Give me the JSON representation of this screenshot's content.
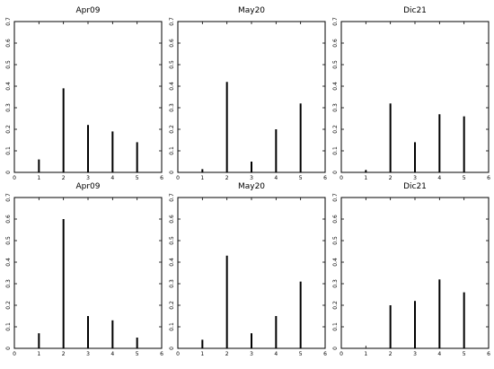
{
  "chart_data": [
    {
      "type": "bar",
      "style": "stem",
      "title": "Apr09",
      "x": [
        1,
        2,
        3,
        4,
        5
      ],
      "values": [
        0.06,
        0.39,
        0.22,
        0.19,
        0.14
      ],
      "xlim": [
        0,
        6
      ],
      "ylim": [
        0,
        0.7
      ],
      "xticks": [
        "0",
        "1",
        "2",
        "3",
        "4",
        "5",
        "6"
      ],
      "yticks": [
        "0",
        "0.1",
        "0.2",
        "0.3",
        "0.4",
        "0.5",
        "0.6",
        "0.7"
      ],
      "grid": false
    },
    {
      "type": "bar",
      "style": "stem",
      "title": "May20",
      "x": [
        1,
        2,
        3,
        4,
        5
      ],
      "values": [
        0.015,
        0.42,
        0.05,
        0.2,
        0.32
      ],
      "xlim": [
        0,
        6
      ],
      "ylim": [
        0,
        0.7
      ],
      "xticks": [
        "0",
        "1",
        "2",
        "3",
        "4",
        "5",
        "6"
      ],
      "yticks": [
        "0",
        "0.1",
        "0.2",
        "0.3",
        "0.4",
        "0.5",
        "0.6",
        "0.7"
      ],
      "grid": false
    },
    {
      "type": "bar",
      "style": "stem",
      "title": "Dic21",
      "x": [
        1,
        2,
        3,
        4,
        5
      ],
      "values": [
        0.01,
        0.32,
        0.14,
        0.27,
        0.26
      ],
      "xlim": [
        0,
        6
      ],
      "ylim": [
        0,
        0.7
      ],
      "xticks": [
        "0",
        "1",
        "2",
        "3",
        "4",
        "5",
        "6"
      ],
      "yticks": [
        "0",
        "0.1",
        "0.2",
        "0.3",
        "0.4",
        "0.5",
        "0.6",
        "0.7"
      ],
      "grid": false
    },
    {
      "type": "bar",
      "style": "stem",
      "title": "Apr09",
      "x": [
        1,
        2,
        3,
        4,
        5
      ],
      "values": [
        0.07,
        0.6,
        0.15,
        0.13,
        0.05
      ],
      "xlim": [
        0,
        6
      ],
      "ylim": [
        0,
        0.7
      ],
      "xticks": [
        "0",
        "1",
        "2",
        "3",
        "4",
        "5",
        "6"
      ],
      "yticks": [
        "0",
        "0.1",
        "0.2",
        "0.3",
        "0.4",
        "0.5",
        "0.6",
        "0.7"
      ],
      "grid": false
    },
    {
      "type": "bar",
      "style": "stem",
      "title": "May20",
      "x": [
        1,
        2,
        3,
        4,
        5
      ],
      "values": [
        0.04,
        0.43,
        0.07,
        0.15,
        0.31
      ],
      "xlim": [
        0,
        6
      ],
      "ylim": [
        0,
        0.7
      ],
      "xticks": [
        "0",
        "1",
        "2",
        "3",
        "4",
        "5",
        "6"
      ],
      "yticks": [
        "0",
        "0.1",
        "0.2",
        "0.3",
        "0.4",
        "0.5",
        "0.6",
        "0.7"
      ],
      "grid": false
    },
    {
      "type": "bar",
      "style": "stem",
      "title": "Dic21",
      "x": [
        2,
        3,
        4,
        5
      ],
      "values": [
        0.2,
        0.22,
        0.32,
        0.26
      ],
      "xlim": [
        0,
        6
      ],
      "ylim": [
        0,
        0.7
      ],
      "xticks": [
        "0",
        "1",
        "2",
        "3",
        "4",
        "5",
        "6"
      ],
      "yticks": [
        "0",
        "0.1",
        "0.2",
        "0.3",
        "0.4",
        "0.5",
        "0.6",
        "0.7"
      ],
      "grid": false
    }
  ]
}
